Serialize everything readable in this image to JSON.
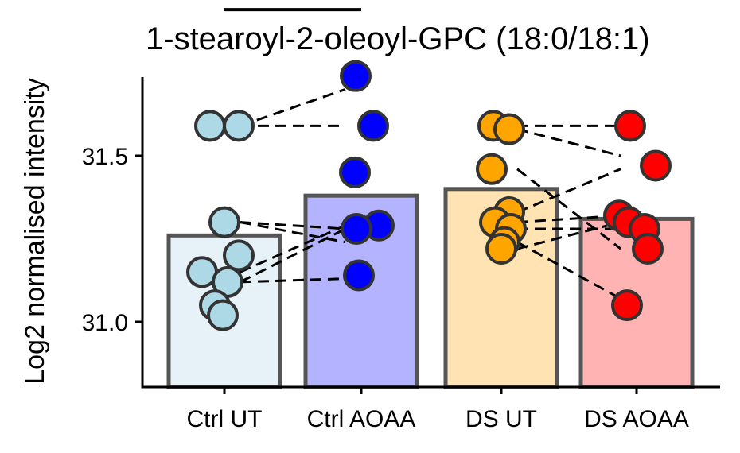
{
  "chart_data": {
    "type": "bar",
    "title": "1-stearoyl-2-oleoyl-GPC (18:0/18:1)",
    "ylabel": "Log2 normalised intensity",
    "xlabel": "",
    "ylim": [
      30.62,
      32.45
    ],
    "yticks": [
      "31.0",
      "31.5",
      "32.0"
    ],
    "categories": [
      "Ctrl UT",
      "Ctrl AOAA",
      "DS UT",
      "DS AOAA"
    ],
    "values": [
      31.26,
      31.38,
      31.4,
      31.31
    ],
    "bar_fill": [
      "#e6f2f8",
      "#b3b3ff",
      "#ffe3b3",
      "#ffb3b3"
    ],
    "bar_stroke": "#555555",
    "point_colors": [
      "#add8e6",
      "#0000ff",
      "#ffa500",
      "#ff0000"
    ],
    "point_stroke": "#333333",
    "points": [
      [
        31.59,
        31.59,
        31.3,
        31.15,
        31.2,
        31.12,
        31.05,
        31.02
      ],
      [
        31.74,
        31.59,
        31.45,
        31.29,
        31.28,
        31.14
      ],
      [
        31.59,
        31.58,
        31.46,
        31.33,
        31.3,
        31.28,
        31.24,
        31.22
      ],
      [
        31.59,
        31.47,
        31.32,
        31.3,
        31.28,
        31.22,
        31.05
      ]
    ],
    "pairs": [
      [
        [
          31.59,
          31.59
        ],
        [
          31.59,
          31.7
        ],
        [
          31.3,
          31.28
        ],
        [
          31.3,
          31.24
        ],
        [
          31.15,
          31.29
        ],
        [
          31.12,
          31.28
        ],
        [
          31.12,
          31.13
        ]
      ],
      [
        [
          31.59,
          31.59
        ],
        [
          31.58,
          31.5
        ],
        [
          31.46,
          31.22
        ],
        [
          31.33,
          31.46
        ],
        [
          31.3,
          31.32
        ],
        [
          31.28,
          31.28
        ],
        [
          31.24,
          31.07
        ],
        [
          31.22,
          31.3
        ]
      ]
    ],
    "significance": [
      {
        "from": 0,
        "to": 1,
        "y": 31.94,
        "label": "*"
      }
    ],
    "grid": false,
    "legend": "none"
  }
}
